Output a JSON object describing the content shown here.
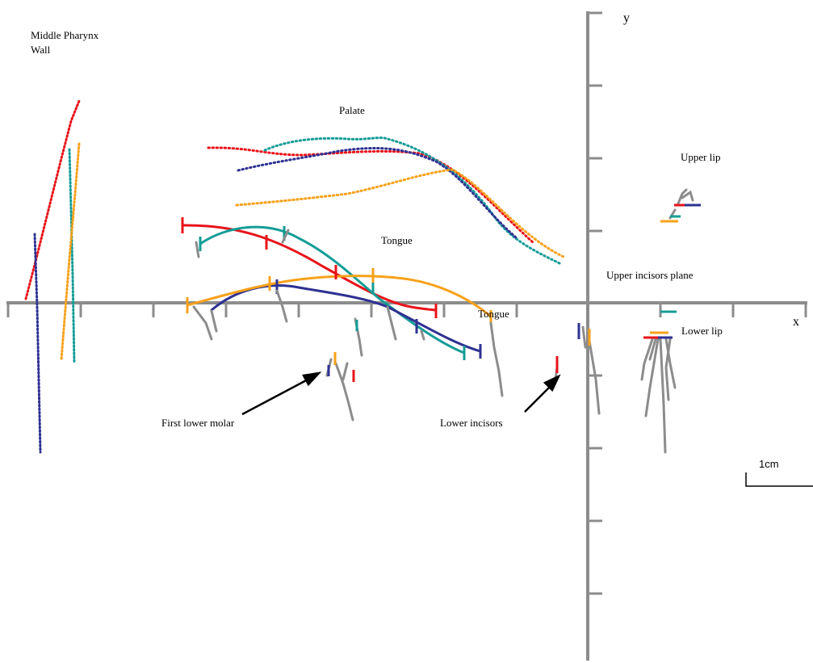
{
  "colors": {
    "axis": "#8c8c8c",
    "series": [
      "#e8131a",
      "#159c97",
      "#2e3192",
      "#f7a11a"
    ],
    "trace": "#8c8c8c",
    "arrow": "#000000"
  },
  "axes": {
    "x_label": "x",
    "y_label": "y"
  },
  "labels": {
    "pharynx_line1": "Middle Pharynx",
    "pharynx_line2": "Wall",
    "palate": "Palate",
    "tongue_upper": "Tongue",
    "tongue_lower": "Tongue",
    "upper_lip": "Upper lip",
    "upper_incisors_plane": "Upper incisors plane",
    "lower_lip": "Lower lip",
    "first_lower_molar": "First lower molar",
    "lower_incisors": "Lower incisors",
    "scale_bar": "1cm"
  }
}
